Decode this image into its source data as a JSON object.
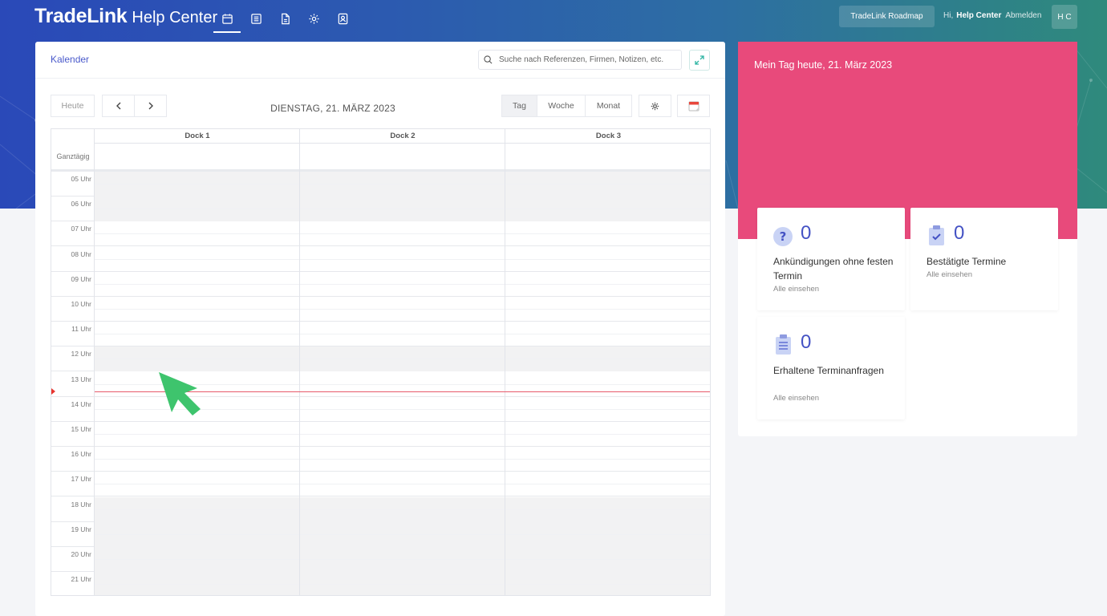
{
  "app": {
    "brand_main": "TradeLink",
    "brand_sub": "Help Center"
  },
  "nav": {
    "icons": [
      "calendar-icon",
      "list-icon",
      "document-icon",
      "gear-icon",
      "contacts-icon"
    ],
    "active": "calendar-icon"
  },
  "header": {
    "roadmap_label": "TradeLink Roadmap",
    "greeting": "Hi,",
    "username": "Help Center",
    "logout_label": "Abmelden",
    "avatar_initials": "H C"
  },
  "calendar": {
    "title": "Kalender",
    "search_placeholder": "Suche nach Referenzen, Firmen, Notizen, etc.",
    "today_label": "Heute",
    "date_title": "DIENSTAG, 21. MÄRZ 2023",
    "views": [
      "Tag",
      "Woche",
      "Monat"
    ],
    "active_view": "Tag",
    "columns": [
      "Dock 1",
      "Dock 2",
      "Dock 3"
    ],
    "allday_label": "Ganztägig",
    "hours": [
      "05 Uhr",
      "06 Uhr",
      "07 Uhr",
      "08 Uhr",
      "09 Uhr",
      "10 Uhr",
      "11 Uhr",
      "12 Uhr",
      "13 Uhr",
      "14 Uhr",
      "15 Uhr",
      "16 Uhr",
      "17 Uhr",
      "18 Uhr",
      "19 Uhr",
      "20 Uhr",
      "21 Uhr"
    ],
    "shaded_hours": [
      "05 Uhr",
      "06 Uhr",
      "12 Uhr",
      "18 Uhr",
      "19 Uhr",
      "20 Uhr",
      "21 Uhr"
    ]
  },
  "myday": {
    "title": "Mein Tag heute, 21. März 2023",
    "stats": [
      {
        "icon": "question-icon",
        "value": "0",
        "label": "Ankündigungen ohne festen Termin",
        "link": "Alle einsehen"
      },
      {
        "icon": "clipboard-check-icon",
        "value": "0",
        "label": "Bestätigte Termine",
        "link": "Alle einsehen"
      },
      {
        "icon": "clipboard-list-icon",
        "value": "0",
        "label": "Erhaltene Terminanfragen",
        "link": "Alle einsehen"
      }
    ]
  },
  "colors": {
    "accent": "#4452c4",
    "pink": "#e84a7b",
    "cursor": "#3ec46d"
  }
}
